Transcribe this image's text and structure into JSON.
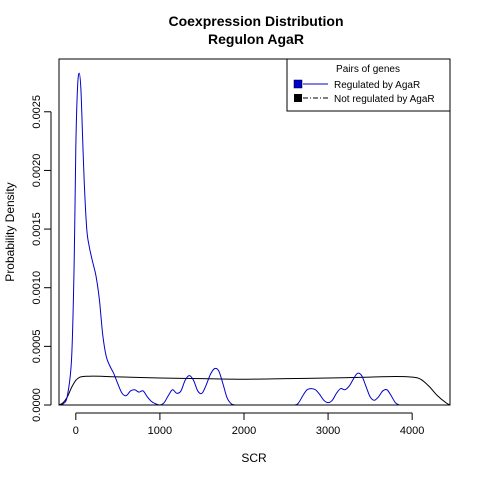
{
  "chart_data": {
    "type": "line",
    "title": "Coexpression Distribution",
    "subtitle": "Regulon AgaR",
    "xlabel": "SCR",
    "ylabel": "Probability Density",
    "xlim": [
      -200,
      4450
    ],
    "ylim": [
      0,
      0.00295
    ],
    "x_ticks": [
      0,
      1000,
      2000,
      3000,
      4000
    ],
    "x_tick_labels": [
      "0",
      "1000",
      "2000",
      "3000",
      "4000"
    ],
    "y_ticks": [
      0,
      0.0005,
      0.001,
      0.0015,
      0.002,
      0.0025
    ],
    "y_tick_labels": [
      "0.0000",
      "0.0005",
      "0.0010",
      "0.0015",
      "0.0020",
      "0.0025"
    ],
    "grid": false,
    "legend": {
      "title": "Pairs of genes",
      "placement": "top-right",
      "entries": [
        "Regulated by AgaR",
        "Not regulated by AgaR"
      ]
    },
    "series": [
      {
        "name": "Regulated by AgaR",
        "color": "#0000cc",
        "line_style": "solid",
        "x": [
          -200,
          -150,
          -100,
          -50,
          -20,
          0,
          20,
          40,
          60,
          80,
          100,
          130,
          160,
          200,
          240,
          280,
          320,
          360,
          400,
          450,
          500,
          550,
          600,
          650,
          700,
          750,
          800,
          850,
          900,
          950,
          1000,
          1050,
          1100,
          1150,
          1200,
          1250,
          1300,
          1350,
          1400,
          1450,
          1500,
          1550,
          1600,
          1650,
          1700,
          1750,
          1800,
          1850,
          1900,
          2000,
          2200,
          2400,
          2600,
          2650,
          2700,
          2750,
          2800,
          2850,
          2900,
          2950,
          3000,
          3050,
          3100,
          3150,
          3200,
          3250,
          3300,
          3350,
          3400,
          3450,
          3500,
          3550,
          3600,
          3650,
          3700,
          3750,
          3800,
          3850
        ],
        "y": [
          0.0,
          1e-05,
          8e-05,
          0.0004,
          0.0012,
          0.0022,
          0.0027,
          0.00283,
          0.0027,
          0.0023,
          0.0019,
          0.0015,
          0.00135,
          0.00122,
          0.0011,
          0.0009,
          0.0006,
          0.00042,
          0.00034,
          0.00027,
          0.00018,
          0.0001,
          8e-05,
          0.00012,
          0.00013,
          0.00011,
          0.00012,
          7e-05,
          3e-05,
          1e-05,
          0.0,
          2e-05,
          8e-05,
          0.00013,
          0.0001,
          0.00012,
          0.00021,
          0.00025,
          0.00021,
          0.00012,
          0.0001,
          0.00017,
          0.00026,
          0.00031,
          0.00029,
          0.00018,
          6e-05,
          1e-05,
          0.0,
          0.0,
          0.0,
          0.0,
          0.0,
          2e-05,
          8e-05,
          0.00013,
          0.00014,
          0.00013,
          9e-05,
          4e-05,
          2e-05,
          4e-05,
          0.0001,
          0.00014,
          0.00013,
          0.00016,
          0.00022,
          0.00027,
          0.00025,
          0.00016,
          7e-05,
          4e-05,
          7e-05,
          0.00012,
          0.00013,
          8e-05,
          2e-05,
          0.0
        ]
      },
      {
        "name": "Not regulated by AgaR",
        "color": "#000000",
        "line_style": "solid",
        "x": [
          -200,
          -150,
          -100,
          -50,
          0,
          50,
          100,
          150,
          200,
          300,
          500,
          1000,
          1500,
          2000,
          2500,
          3000,
          3500,
          3800,
          4000,
          4100,
          4200,
          4300,
          4400,
          4450
        ],
        "y": [
          0.0,
          2e-05,
          7e-05,
          0.00015,
          0.00021,
          0.000238,
          0.000244,
          0.000245,
          0.000246,
          0.000245,
          0.00024,
          0.00023,
          0.000225,
          0.00022,
          0.000225,
          0.00023,
          0.000238,
          0.000243,
          0.000238,
          0.00022,
          0.00016,
          8e-05,
          2e-05,
          0.0
        ]
      }
    ]
  }
}
